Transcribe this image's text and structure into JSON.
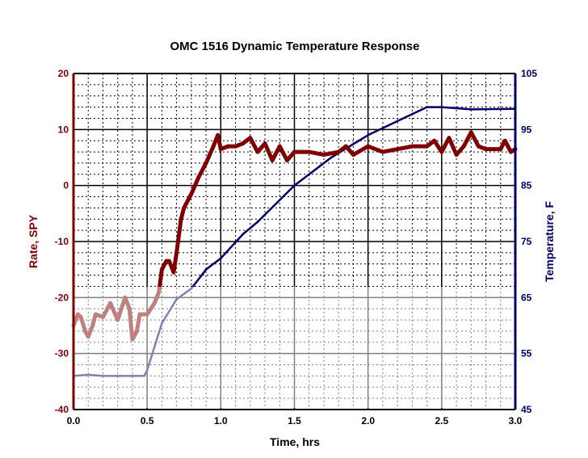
{
  "chart_data": {
    "type": "line",
    "title": "OMC 1516 Dynamic Temperature Response",
    "xlabel": "Time, hrs",
    "ylabel": "Rate, SPY",
    "y2label": "Temperature, F",
    "xlim": [
      0,
      3
    ],
    "ylim": [
      -40,
      20
    ],
    "y2lim": [
      45,
      105
    ],
    "xticks": [
      "0.0",
      "0.5",
      "1.0",
      "1.5",
      "2.0",
      "2.5",
      "3.0"
    ],
    "yticks": [
      "20",
      "10",
      "0",
      "-10",
      "-20",
      "-30",
      "-40"
    ],
    "y2ticks": [
      "105",
      "95",
      "85",
      "75",
      "65",
      "55",
      "45"
    ],
    "grid": true,
    "colors": {
      "rate": "#800000",
      "temperature": "#000066"
    },
    "series": [
      {
        "axis": "left",
        "x": [
          0,
          0.03,
          0.05,
          0.08,
          0.1,
          0.13,
          0.15,
          0.2,
          0.25,
          0.3,
          0.35,
          0.38,
          0.4,
          0.43,
          0.45,
          0.5,
          0.55,
          0.58,
          0.6,
          0.63,
          0.65,
          0.68,
          0.7,
          0.73,
          0.75,
          0.8,
          0.85,
          0.9,
          0.95,
          0.98,
          1.0,
          1.05,
          1.1,
          1.15,
          1.2,
          1.25,
          1.3,
          1.35,
          1.4,
          1.45,
          1.5,
          1.6,
          1.7,
          1.8,
          1.85,
          1.9,
          2.0,
          2.1,
          2.2,
          2.3,
          2.4,
          2.45,
          2.5,
          2.55,
          2.6,
          2.65,
          2.7,
          2.75,
          2.8,
          2.9,
          2.93,
          2.97,
          3.0
        ],
        "values": [
          -25,
          -23,
          -23.5,
          -26,
          -27,
          -25,
          -23,
          -23.5,
          -21,
          -24,
          -20,
          -22,
          -27.5,
          -26,
          -23,
          -23,
          -21,
          -19,
          -15,
          -13.5,
          -13.5,
          -15.5,
          -12,
          -6,
          -4,
          -1.5,
          1.5,
          4,
          7,
          9,
          6.5,
          7,
          7,
          7.5,
          8.5,
          6,
          7.5,
          4.5,
          7,
          4.5,
          6,
          6,
          5.5,
          6,
          7,
          5.5,
          7,
          6,
          6.5,
          7,
          7,
          8,
          6,
          8.5,
          5.5,
          7,
          9.5,
          7,
          6.5,
          6.5,
          8,
          6,
          6.5
        ]
      },
      {
        "axis": "right",
        "x": [
          0,
          0.1,
          0.2,
          0.3,
          0.4,
          0.48,
          0.5,
          0.6,
          0.7,
          0.8,
          0.9,
          1.0,
          1.15,
          1.25,
          1.5,
          1.75,
          2.0,
          2.2,
          2.4,
          2.5,
          2.7,
          3.0
        ],
        "values": [
          51,
          51.2,
          51,
          51,
          51,
          51,
          52,
          60.4,
          64.7,
          66.6,
          70,
          72,
          76.3,
          78.5,
          85,
          90,
          94,
          96.5,
          99,
          99,
          98.6,
          98.7
        ]
      }
    ]
  }
}
